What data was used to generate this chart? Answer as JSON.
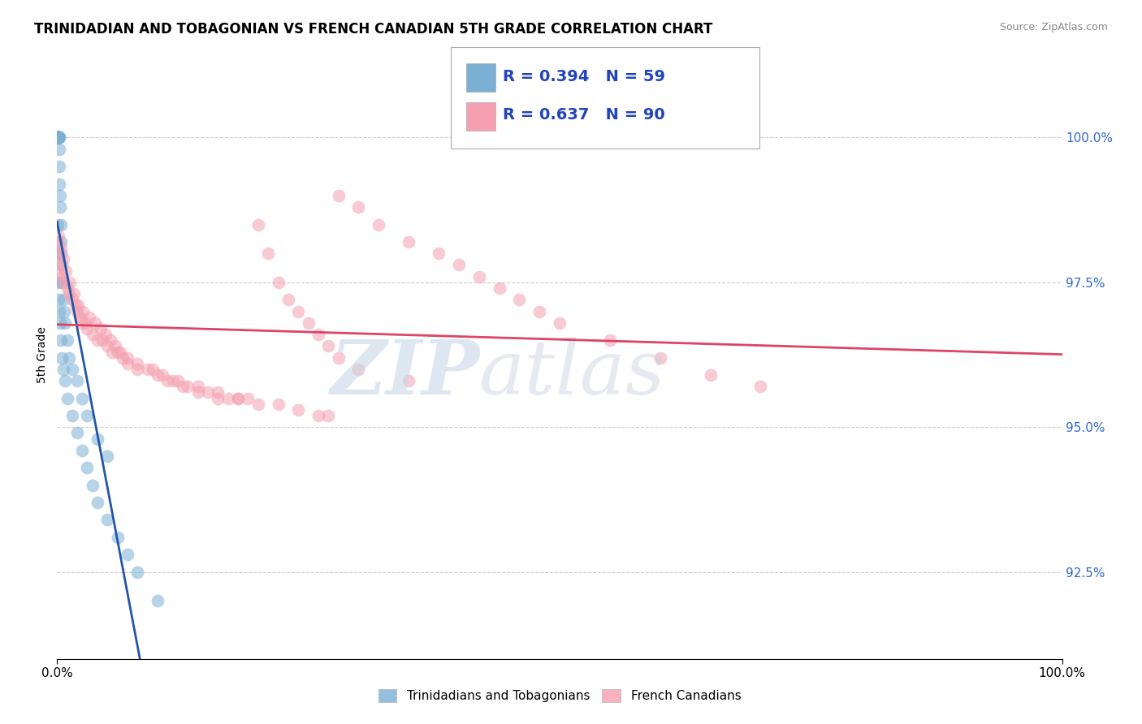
{
  "title": "TRINIDADIAN AND TOBAGONIAN VS FRENCH CANADIAN 5TH GRADE CORRELATION CHART",
  "source": "Source: ZipAtlas.com",
  "ylabel": "5th Grade",
  "ylabel_tick_vals": [
    92.5,
    95.0,
    97.5,
    100.0
  ],
  "legend_label_blue": "Trinidadians and Tobagonians",
  "legend_label_pink": "French Canadians",
  "R_blue": 0.394,
  "N_blue": 59,
  "R_pink": 0.637,
  "N_pink": 90,
  "color_blue": "#7BAFD4",
  "color_pink": "#F4A0B0",
  "color_trendline_blue": "#2255AA",
  "color_trendline_pink": "#DD4466",
  "xlim": [
    0,
    100
  ],
  "ylim": [
    91.0,
    101.5
  ],
  "blue_x": [
    0.05,
    0.05,
    0.05,
    0.05,
    0.05,
    0.05,
    0.05,
    0.1,
    0.1,
    0.1,
    0.1,
    0.1,
    0.15,
    0.15,
    0.2,
    0.2,
    0.2,
    0.25,
    0.25,
    0.3,
    0.3,
    0.35,
    0.4,
    0.4,
    0.5,
    0.5,
    0.6,
    0.7,
    0.8,
    1.0,
    1.2,
    1.5,
    2.0,
    2.5,
    3.0,
    4.0,
    5.0,
    0.05,
    0.05,
    0.05,
    0.15,
    0.2,
    0.3,
    0.4,
    0.5,
    0.6,
    0.8,
    1.0,
    1.5,
    2.0,
    2.5,
    3.0,
    3.5,
    4.0,
    5.0,
    6.0,
    7.0,
    8.0,
    10.0
  ],
  "blue_y": [
    100.0,
    100.0,
    100.0,
    100.0,
    100.0,
    100.0,
    100.0,
    100.0,
    100.0,
    100.0,
    100.0,
    100.0,
    100.0,
    100.0,
    100.0,
    100.0,
    99.8,
    99.5,
    99.2,
    99.0,
    98.8,
    98.5,
    98.2,
    98.0,
    97.8,
    97.5,
    97.2,
    97.0,
    96.8,
    96.5,
    96.2,
    96.0,
    95.8,
    95.5,
    95.2,
    94.8,
    94.5,
    98.5,
    98.0,
    97.5,
    97.2,
    97.0,
    96.8,
    96.5,
    96.2,
    96.0,
    95.8,
    95.5,
    95.2,
    94.9,
    94.6,
    94.3,
    94.0,
    93.7,
    93.4,
    93.1,
    92.8,
    92.5,
    92.0
  ],
  "pink_x": [
    0.05,
    0.1,
    0.2,
    0.3,
    0.5,
    0.7,
    1.0,
    1.2,
    1.5,
    1.8,
    2.0,
    2.2,
    2.5,
    2.8,
    3.0,
    3.5,
    4.0,
    4.5,
    5.0,
    5.5,
    6.0,
    6.5,
    7.0,
    8.0,
    9.0,
    10.0,
    11.0,
    12.0,
    13.0,
    14.0,
    15.0,
    16.0,
    17.0,
    18.0,
    19.0,
    20.0,
    21.0,
    22.0,
    23.0,
    24.0,
    25.0,
    26.0,
    27.0,
    0.15,
    0.4,
    0.6,
    0.9,
    1.3,
    1.7,
    2.1,
    2.6,
    3.2,
    3.8,
    4.3,
    4.8,
    5.3,
    5.8,
    6.3,
    7.0,
    8.0,
    9.5,
    10.5,
    11.5,
    12.5,
    14.0,
    16.0,
    18.0,
    20.0,
    22.0,
    24.0,
    26.0,
    27.0,
    28.0,
    30.0,
    32.0,
    35.0,
    38.0,
    40.0,
    42.0,
    44.0,
    46.0,
    48.0,
    50.0,
    55.0,
    60.0,
    65.0,
    70.0,
    28.0,
    30.0,
    35.0
  ],
  "pink_y": [
    98.2,
    98.0,
    97.8,
    97.7,
    97.6,
    97.5,
    97.4,
    97.3,
    97.2,
    97.1,
    97.0,
    96.9,
    96.8,
    96.8,
    96.7,
    96.6,
    96.5,
    96.5,
    96.4,
    96.3,
    96.3,
    96.2,
    96.1,
    96.0,
    96.0,
    95.9,
    95.8,
    95.8,
    95.7,
    95.7,
    95.6,
    95.6,
    95.5,
    95.5,
    95.5,
    98.5,
    98.0,
    97.5,
    97.2,
    97.0,
    96.8,
    96.6,
    96.4,
    98.3,
    98.1,
    97.9,
    97.7,
    97.5,
    97.3,
    97.1,
    97.0,
    96.9,
    96.8,
    96.7,
    96.6,
    96.5,
    96.4,
    96.3,
    96.2,
    96.1,
    96.0,
    95.9,
    95.8,
    95.7,
    95.6,
    95.5,
    95.5,
    95.4,
    95.4,
    95.3,
    95.2,
    95.2,
    99.0,
    98.8,
    98.5,
    98.2,
    98.0,
    97.8,
    97.6,
    97.4,
    97.2,
    97.0,
    96.8,
    96.5,
    96.2,
    95.9,
    95.7,
    96.2,
    96.0,
    95.8
  ]
}
